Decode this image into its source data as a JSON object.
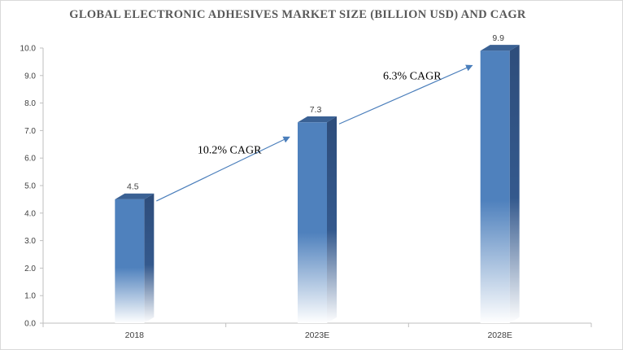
{
  "chart_data": {
    "type": "bar",
    "title": "GLOBAL ELECTRONIC ADHESIVES MARKET SIZE (BILLION USD) AND CAGR",
    "categories": [
      "2018",
      "2023E",
      "2028E"
    ],
    "values": [
      4.5,
      7.3,
      9.9
    ],
    "data_labels": [
      "4.5",
      "7.3",
      "9.9"
    ],
    "ylim": [
      0,
      10
    ],
    "yticks": [
      "0.0",
      "1.0",
      "2.0",
      "3.0",
      "4.0",
      "5.0",
      "6.0",
      "7.0",
      "8.0",
      "9.0",
      "10.0"
    ],
    "xlabel": "",
    "ylabel": "",
    "grid": false,
    "annotations": [
      {
        "text": "10.2% CAGR",
        "from": "2018",
        "to": "2023E"
      },
      {
        "text": "6.3% CAGR",
        "from": "2023E",
        "to": "2028E"
      }
    ],
    "colors": {
      "bar_front": "#4f81bd",
      "bar_side": "#2e4d7b",
      "bar_top": "#3a6194",
      "arrow": "#4a7ebb",
      "axis": "#bfbfbf"
    }
  }
}
